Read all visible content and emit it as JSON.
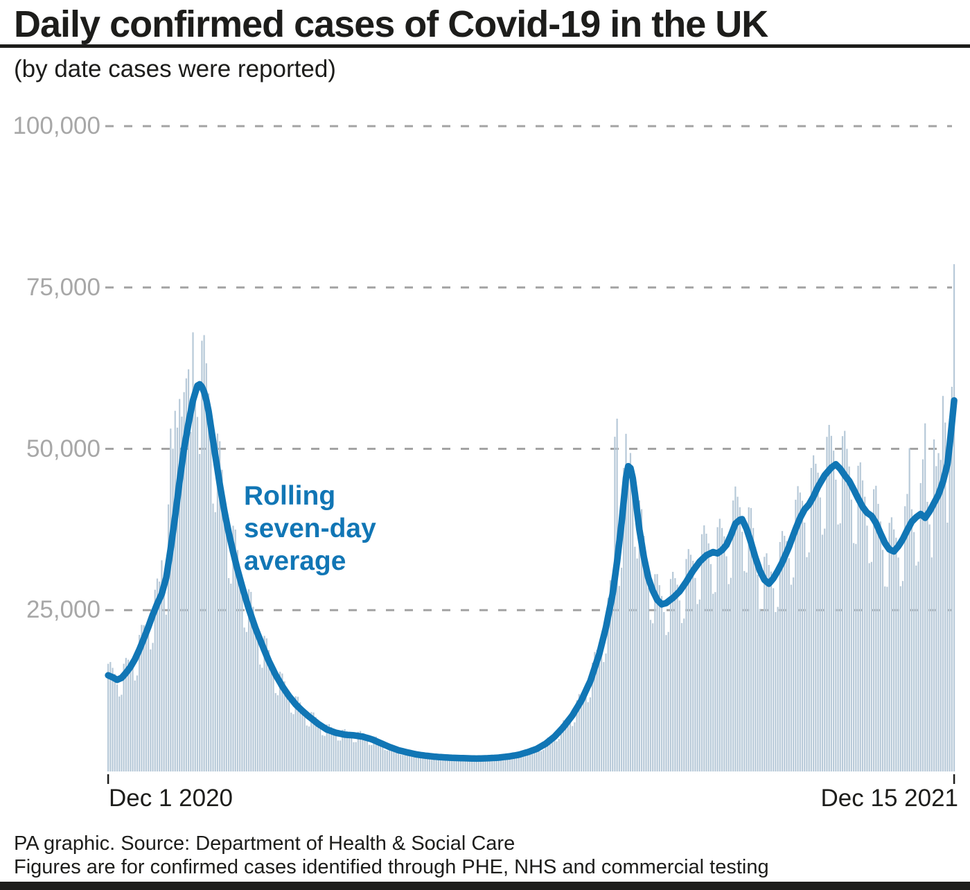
{
  "header": {
    "title": "Daily confirmed cases of Covid-19 in the UK",
    "subtitle": "(by date cases were reported)"
  },
  "annotation": {
    "line1": "Rolling",
    "line2": "seven-day",
    "line3": "average"
  },
  "footer": {
    "line1": "PA graphic. Source: Department of Health & Social Care",
    "line2": "Figures are for confirmed cases identified through PHE, NHS and commercial testing"
  },
  "colors": {
    "accent_blue": "#1176b5",
    "bar_fill": "#b7c9d8",
    "grid_gray": "#a3a3a3",
    "tick_black": "#1d1d1b"
  },
  "chart_data": {
    "type": "bar+line",
    "title": "Daily confirmed cases of Covid-19 in the UK",
    "subtitle": "(by date cases were reported)",
    "grid": "dashed-horizontal",
    "x_axis": {
      "start_label": "Dec 1 2020",
      "end_label": "Dec 15 2021",
      "days": 380
    },
    "y_axis": {
      "min": 0,
      "max": 100000,
      "ticks": [
        {
          "value": 25000,
          "label": "25,000"
        },
        {
          "value": 50000,
          "label": "50,000"
        },
        {
          "value": 75000,
          "label": "75,000"
        },
        {
          "value": 100000,
          "label": "100,000"
        }
      ]
    },
    "series": {
      "rolling_avg": {
        "name": "Rolling seven-day average",
        "anchors": [
          [
            0,
            14900
          ],
          [
            2,
            14600
          ],
          [
            4,
            14200
          ],
          [
            6,
            14500
          ],
          [
            8,
            15300
          ],
          [
            10,
            16200
          ],
          [
            12,
            17400
          ],
          [
            14,
            18900
          ],
          [
            16,
            20600
          ],
          [
            18,
            22400
          ],
          [
            20,
            24300
          ],
          [
            22,
            26000
          ],
          [
            24,
            27500
          ],
          [
            26,
            30000
          ],
          [
            28,
            34500
          ],
          [
            30,
            39500
          ],
          [
            32,
            45000
          ],
          [
            34,
            50000
          ],
          [
            36,
            54000
          ],
          [
            38,
            57500
          ],
          [
            40,
            59800
          ],
          [
            41,
            60000
          ],
          [
            42,
            59600
          ],
          [
            43,
            58800
          ],
          [
            44,
            57500
          ],
          [
            45,
            55800
          ],
          [
            46,
            53500
          ],
          [
            48,
            49000
          ],
          [
            50,
            44500
          ],
          [
            52,
            40500
          ],
          [
            54,
            37000
          ],
          [
            56,
            34000
          ],
          [
            58,
            31200
          ],
          [
            60,
            28700
          ],
          [
            63,
            25200
          ],
          [
            66,
            22200
          ],
          [
            69,
            19600
          ],
          [
            72,
            17100
          ],
          [
            75,
            15000
          ],
          [
            78,
            13200
          ],
          [
            81,
            11700
          ],
          [
            84,
            10400
          ],
          [
            87,
            9400
          ],
          [
            90,
            8500
          ],
          [
            94,
            7400
          ],
          [
            98,
            6500
          ],
          [
            102,
            6000
          ],
          [
            106,
            5700
          ],
          [
            110,
            5600
          ],
          [
            114,
            5400
          ],
          [
            118,
            5000
          ],
          [
            122,
            4400
          ],
          [
            126,
            3800
          ],
          [
            130,
            3300
          ],
          [
            134,
            2950
          ],
          [
            138,
            2650
          ],
          [
            142,
            2450
          ],
          [
            146,
            2300
          ],
          [
            150,
            2200
          ],
          [
            155,
            2100
          ],
          [
            160,
            2050
          ],
          [
            165,
            2000
          ],
          [
            170,
            2050
          ],
          [
            175,
            2150
          ],
          [
            180,
            2350
          ],
          [
            184,
            2600
          ],
          [
            188,
            3000
          ],
          [
            192,
            3500
          ],
          [
            196,
            4300
          ],
          [
            200,
            5400
          ],
          [
            204,
            6900
          ],
          [
            208,
            8700
          ],
          [
            212,
            11000
          ],
          [
            216,
            14000
          ],
          [
            220,
            18200
          ],
          [
            223,
            22300
          ],
          [
            226,
            27500
          ],
          [
            228,
            32500
          ],
          [
            230,
            38500
          ],
          [
            231,
            42000
          ],
          [
            232,
            45500
          ],
          [
            233,
            47300
          ],
          [
            234,
            47000
          ],
          [
            235,
            45500
          ],
          [
            236,
            43000
          ],
          [
            238,
            37500
          ],
          [
            240,
            33200
          ],
          [
            242,
            30000
          ],
          [
            244,
            28000
          ],
          [
            246,
            26600
          ],
          [
            248,
            25900
          ],
          [
            250,
            26100
          ],
          [
            253,
            26900
          ],
          [
            256,
            27900
          ],
          [
            259,
            29400
          ],
          [
            262,
            31100
          ],
          [
            265,
            32500
          ],
          [
            268,
            33500
          ],
          [
            271,
            34000
          ],
          [
            273,
            33800
          ],
          [
            275,
            34300
          ],
          [
            277,
            35100
          ],
          [
            279,
            36600
          ],
          [
            281,
            38400
          ],
          [
            283,
            39000
          ],
          [
            284,
            39100
          ],
          [
            286,
            37600
          ],
          [
            288,
            35500
          ],
          [
            290,
            33100
          ],
          [
            292,
            31100
          ],
          [
            294,
            29700
          ],
          [
            296,
            29100
          ],
          [
            298,
            29900
          ],
          [
            300,
            31100
          ],
          [
            302,
            32400
          ],
          [
            305,
            34800
          ],
          [
            308,
            37600
          ],
          [
            310,
            39300
          ],
          [
            312,
            40600
          ],
          [
            314,
            41400
          ],
          [
            316,
            42600
          ],
          [
            318,
            44100
          ],
          [
            321,
            45900
          ],
          [
            324,
            47100
          ],
          [
            326,
            47600
          ],
          [
            328,
            46900
          ],
          [
            330,
            45900
          ],
          [
            332,
            45000
          ],
          [
            334,
            43700
          ],
          [
            336,
            42300
          ],
          [
            338,
            41000
          ],
          [
            340,
            40100
          ],
          [
            342,
            39600
          ],
          [
            344,
            38500
          ],
          [
            346,
            36900
          ],
          [
            348,
            35400
          ],
          [
            350,
            34400
          ],
          [
            352,
            34100
          ],
          [
            354,
            34900
          ],
          [
            356,
            36000
          ],
          [
            358,
            37400
          ],
          [
            360,
            38700
          ],
          [
            362,
            39400
          ],
          [
            364,
            39900
          ],
          [
            366,
            39300
          ],
          [
            368,
            40300
          ],
          [
            370,
            41600
          ],
          [
            372,
            42900
          ],
          [
            374,
            44900
          ],
          [
            376,
            47600
          ],
          [
            377,
            50500
          ],
          [
            378,
            54000
          ],
          [
            379,
            57500
          ]
        ]
      },
      "daily_bars": {
        "name": "Daily confirmed cases",
        "weekday_factors": [
          1.12,
          1.15,
          1.1,
          1.05,
          0.95,
          0.81,
          0.82
        ],
        "overrides": {
          "24": 32725,
          "27": 41385,
          "28": 53135,
          "29": 50023,
          "30": 55892,
          "31": 53285,
          "32": 57725,
          "33": 54990,
          "34": 58784,
          "35": 60916,
          "36": 62322,
          "37": 52618,
          "38": 68053,
          "39": 59937,
          "40": 54940,
          "227": 51870,
          "228": 54674,
          "233": 46558,
          "324": 52009,
          "359": 50091,
          "365": 48374,
          "366": 53945,
          "370": 51459,
          "374": 58194,
          "375": 54073,
          "377": 54661,
          "378": 59610,
          "379": 78610
        }
      }
    },
    "annotation_text": "Rolling seven-day average",
    "legend_position": "annotation-on-plot"
  }
}
